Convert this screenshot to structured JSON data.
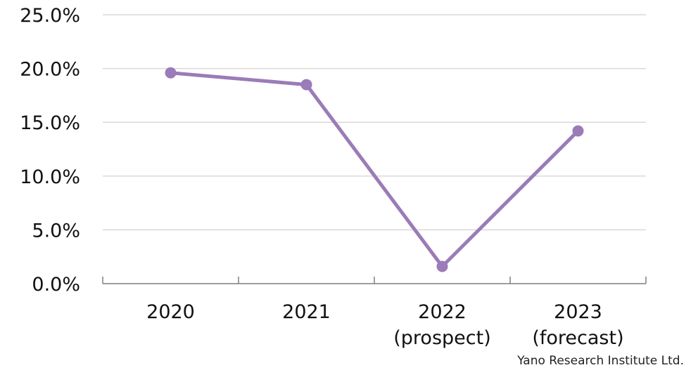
{
  "chart_data": {
    "type": "line",
    "categories": [
      [
        "2020"
      ],
      [
        "2021"
      ],
      [
        "2022",
        "(prospect)"
      ],
      [
        "2023",
        "(forecast)"
      ]
    ],
    "series": [
      {
        "values": [
          19.6,
          18.5,
          1.6,
          14.2
        ]
      }
    ],
    "yticks": [
      "0.0%",
      "5.0%",
      "10.0%",
      "15.0%",
      "20.0%",
      "25.0%"
    ],
    "ylim": [
      0,
      25
    ],
    "grid": true,
    "legend": "none"
  },
  "colors": {
    "line": "#9B7BB8",
    "grid": "#d9d9d9",
    "axis": "#7f7f7f"
  },
  "source": "Yano Research Institute Ltd."
}
